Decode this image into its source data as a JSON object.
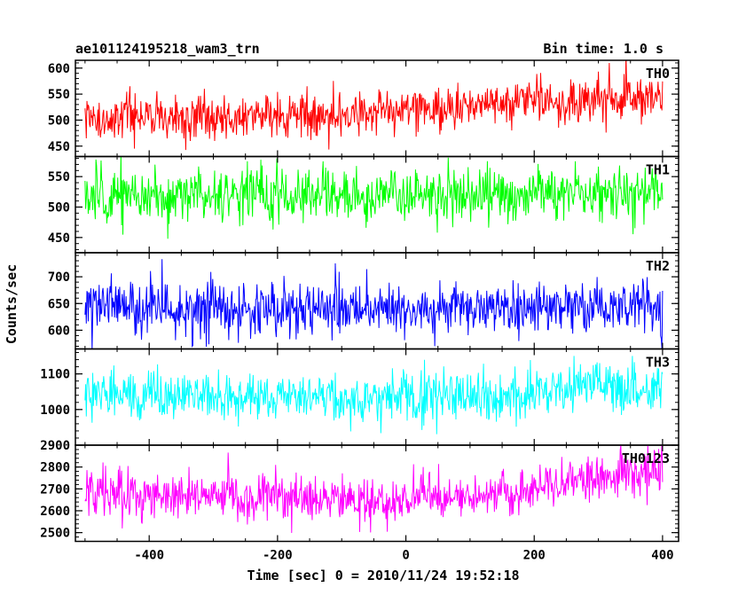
{
  "header": {
    "title": "ae101124195218_wam3_trn",
    "bin_time": "Bin time: 1.0 s"
  },
  "chart_data": {
    "type": "line",
    "title": "ae101124195218_wam3_trn",
    "subtitle": "Bin time: 1.0 s",
    "xlabel": "Time [sec] 0 = 2010/11/24 19:52:18",
    "ylabel": "Counts/sec",
    "xlim": [
      -515,
      425
    ],
    "x_ticks": [
      -400,
      -200,
      0,
      200,
      400
    ],
    "x_range": [
      -500,
      400
    ],
    "x_step": 1,
    "grid": false,
    "panels": [
      {
        "name": "TH0",
        "color": "#ff0000",
        "ylim": [
          430,
          615
        ],
        "y_ticks": [
          450,
          500,
          550,
          600
        ],
        "trend": [
          [
            -500,
            500
          ],
          [
            -300,
            505
          ],
          [
            -100,
            510
          ],
          [
            0,
            515
          ],
          [
            100,
            530
          ],
          [
            300,
            540
          ],
          [
            400,
            545
          ]
        ],
        "noise_sd": 22
      },
      {
        "name": "TH1",
        "color": "#00ff00",
        "ylim": [
          425,
          583
        ],
        "y_ticks": [
          450,
          500,
          550
        ],
        "trend": [
          [
            -500,
            520
          ],
          [
            0,
            518
          ],
          [
            400,
            522
          ]
        ],
        "noise_sd": 22
      },
      {
        "name": "TH2",
        "color": "#0000ff",
        "ylim": [
          565,
          745
        ],
        "y_ticks": [
          600,
          650,
          700
        ],
        "trend": [
          [
            -500,
            645
          ],
          [
            0,
            640
          ],
          [
            400,
            645
          ]
        ],
        "noise_sd": 25
      },
      {
        "name": "TH3",
        "color": "#00ffff",
        "ylim": [
          900,
          1170
        ],
        "y_ticks": [
          1000,
          1100
        ],
        "trend": [
          [
            -500,
            1040
          ],
          [
            200,
            1035
          ],
          [
            300,
            1080
          ],
          [
            400,
            1050
          ]
        ],
        "noise_sd": 35
      },
      {
        "name": "TH0123",
        "color": "#ff00ff",
        "ylim": [
          2460,
          2900
        ],
        "y_ticks": [
          2500,
          2600,
          2700,
          2800
        ],
        "y_ticks_extra": [
          2900
        ],
        "trend": [
          [
            -500,
            2680
          ],
          [
            -200,
            2670
          ],
          [
            -100,
            2640
          ],
          [
            200,
            2690
          ],
          [
            300,
            2760
          ],
          [
            400,
            2790
          ]
        ],
        "noise_sd": 55
      }
    ]
  }
}
